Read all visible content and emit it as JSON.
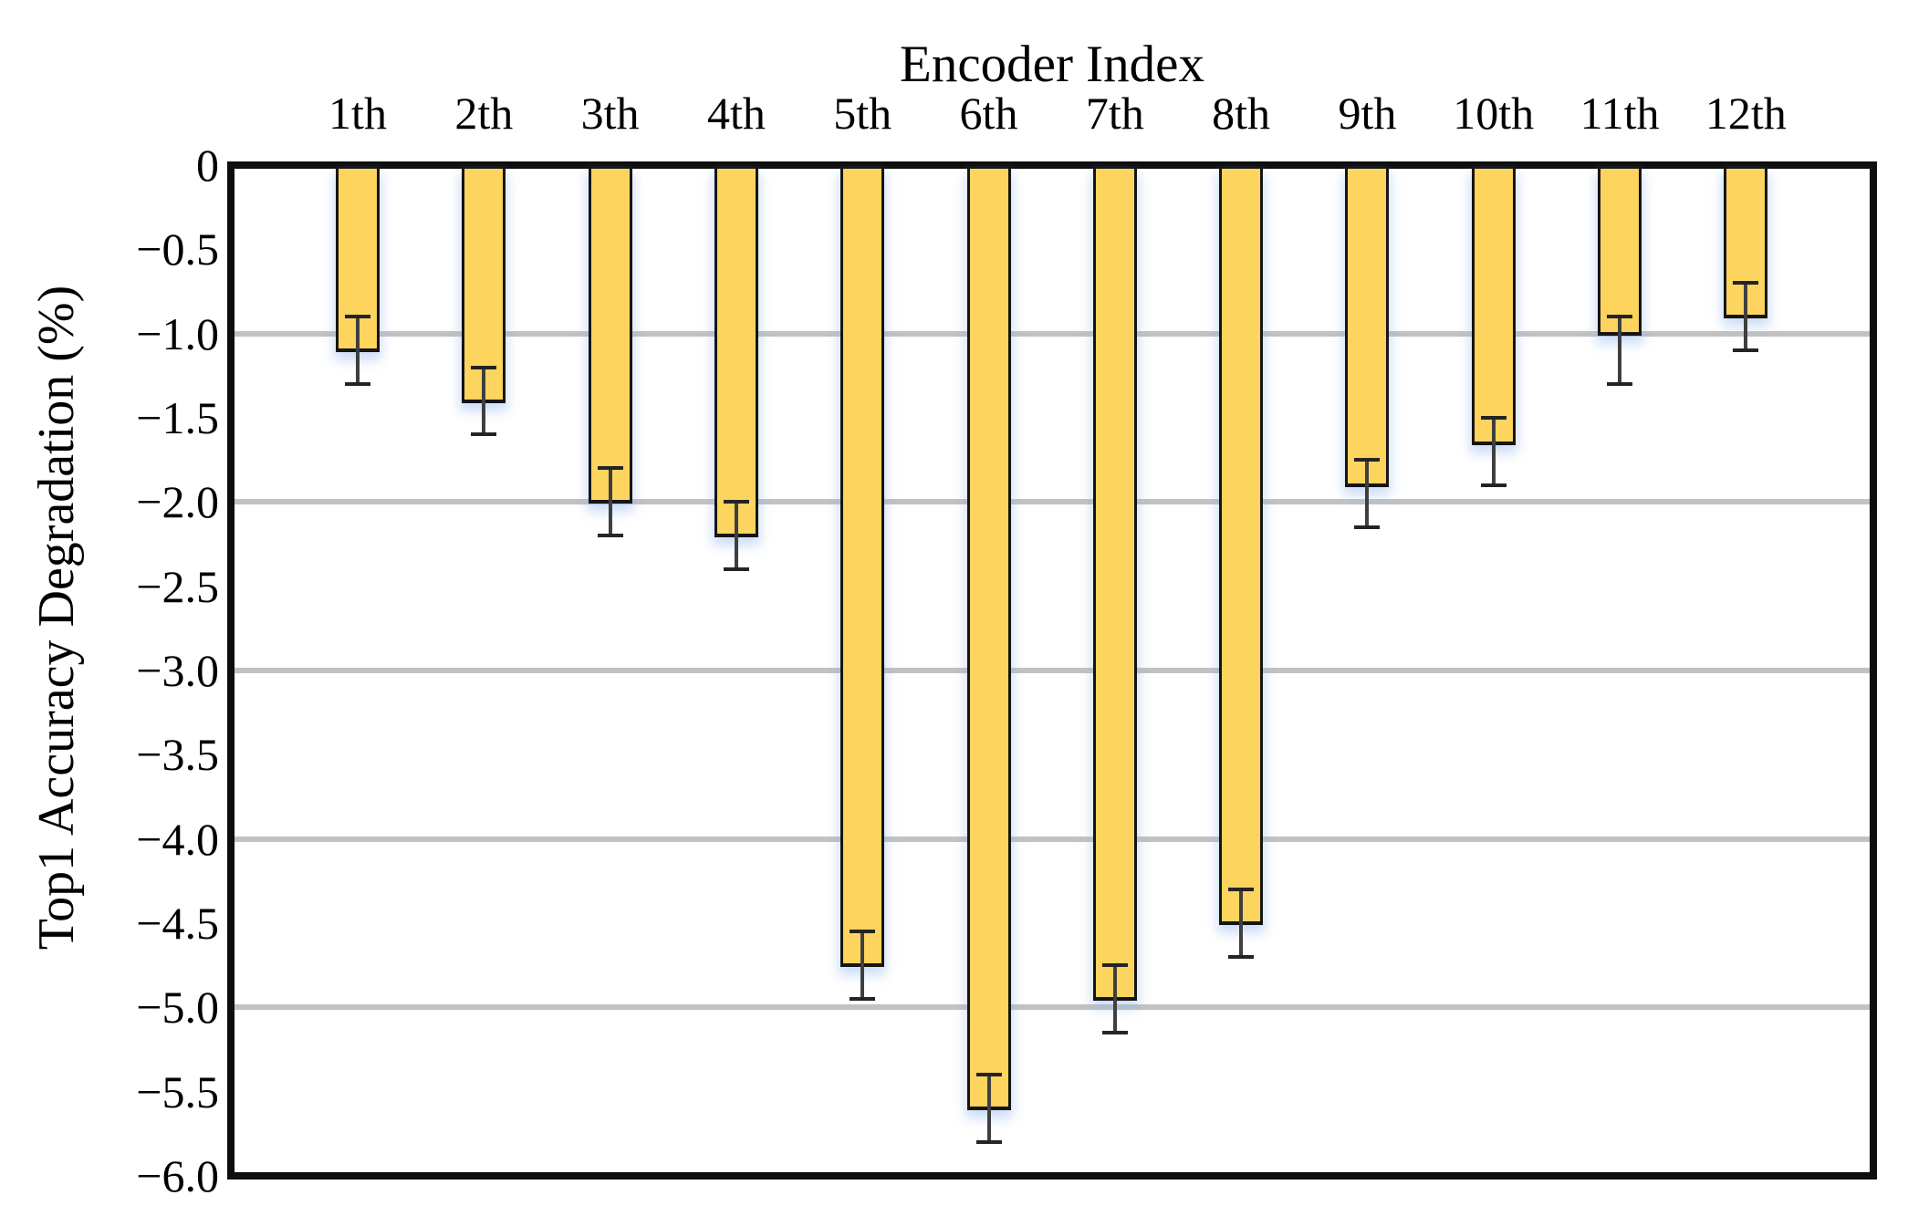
{
  "chart_data": {
    "type": "bar",
    "title": "Encoder Index",
    "xlabel": "Encoder Index",
    "ylabel": "Top1 Accuracy Degradation (%)",
    "categories": [
      "1th",
      "2th",
      "3th",
      "4th",
      "5th",
      "6th",
      "7th",
      "8th",
      "9th",
      "10th",
      "11th",
      "12th"
    ],
    "values": [
      -1.1,
      -1.4,
      -2.0,
      -2.2,
      -4.75,
      -5.6,
      -4.95,
      -4.5,
      -1.9,
      -1.65,
      -1.0,
      -0.9
    ],
    "error_high": [
      -0.9,
      -1.2,
      -1.8,
      -2.0,
      -4.55,
      -5.4,
      -4.75,
      -4.3,
      -1.75,
      -1.5,
      -0.9,
      -0.7
    ],
    "error_low": [
      -1.3,
      -1.6,
      -2.2,
      -2.4,
      -4.95,
      -5.8,
      -5.15,
      -4.7,
      -2.15,
      -1.9,
      -1.3,
      -1.1
    ],
    "ylim": [
      -6.0,
      0
    ],
    "yticks": [
      0,
      -0.5,
      -1.0,
      -1.5,
      -2.0,
      -2.5,
      -3.0,
      -3.5,
      -4.0,
      -4.5,
      -5.0,
      -5.5,
      -6.0
    ],
    "ytick_labels": [
      "0",
      "−0.5",
      "−1.0",
      "−1.5",
      "−2.0",
      "−2.5",
      "−3.0",
      "−3.5",
      "−4.0",
      "−4.5",
      "−5.0",
      "−5.5",
      "−6.0"
    ],
    "gridlines": [
      -1.0,
      -2.0,
      -3.0,
      -4.0,
      -5.0
    ],
    "grid": "horizontal gray lines at integer values",
    "legend": "none",
    "bar_direction": "downward from zero baseline at top",
    "colors": {
      "bar_fill": "#FCD45E",
      "bar_edge": "#151515",
      "frame": "#0e0e0e",
      "gridline": "#c2c2c2",
      "error_bar": "#3f3f3f",
      "background": "#ffffff",
      "bar_glow": "rgba(145,180,235,0.45)"
    }
  }
}
